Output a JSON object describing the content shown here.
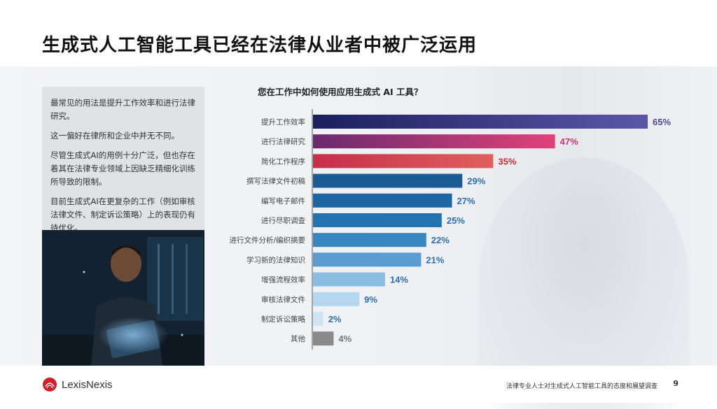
{
  "title": "生成式人工智能工具已经在法律从业者中被广泛运用",
  "sidebar": {
    "p1": "最常见的用法是提升工作效率和进行法律研究。",
    "p2": "这一偏好在律所和企业中并无不同。",
    "p3": "尽管生成式AI的用例十分广泛，但也存在着其在法律专业领域上因缺乏精细化训练所导致的限制。",
    "p4": "目前生成式AI在更复杂的工作（例如审核法律文件、制定诉讼策略）上的表现仍有待优化。"
  },
  "chart_data": {
    "type": "bar",
    "orientation": "horizontal",
    "title": "您在工作中如何使用应用生成式 AI 工具？",
    "categories": [
      "提升工作效率",
      "进行法律研究",
      "简化工作程序",
      "撰写法律文件初稿",
      "编写电子邮件",
      "进行尽职调查",
      "进行文件分析/编织摘要",
      "学习新的法律知识",
      "增强流程效率",
      "审核法律文件",
      "制定诉讼策略",
      "其他"
    ],
    "values": [
      65,
      47,
      35,
      29,
      27,
      25,
      22,
      21,
      14,
      9,
      2,
      4
    ],
    "labels": [
      "65%",
      "47%",
      "35%",
      "29%",
      "27%",
      "25%",
      "22%",
      "21%",
      "14%",
      "9%",
      "2%",
      "4%"
    ],
    "xlim": [
      0,
      65
    ],
    "bar_colors": [
      [
        "#1b1f5e",
        "#5b57a8"
      ],
      [
        "#6a2a6e",
        "#e0427a"
      ],
      [
        "#c62f4a",
        "#e0605e"
      ],
      [
        "#1c5c96",
        "#1c5c96"
      ],
      [
        "#1f67a3",
        "#1f67a3"
      ],
      [
        "#2473b1",
        "#2473b1"
      ],
      [
        "#3a86c0",
        "#3a86c0"
      ],
      [
        "#5a9bd0",
        "#5a9bd0"
      ],
      [
        "#8cbde3",
        "#8cbde3"
      ],
      [
        "#b4d6ef",
        "#b4d6ef"
      ],
      [
        "#cfe4f4",
        "#cfe4f4"
      ],
      [
        "#8a8a8a",
        "#8a8a8a"
      ]
    ],
    "label_colors": [
      "#4d4a99",
      "#c9366d",
      "#c62f3a",
      "#2e6fb0",
      "#2e6fb0",
      "#2e6fb0",
      "#2e6fb0",
      "#2e6fb0",
      "#2e6fb0",
      "#2e6fb0",
      "#2e6fb0",
      "#777777"
    ]
  },
  "footer": {
    "logo_text": "LexisNexis",
    "report": "法律专业人士对生成式人工智能工具的态度和展望调查",
    "page": "9"
  }
}
